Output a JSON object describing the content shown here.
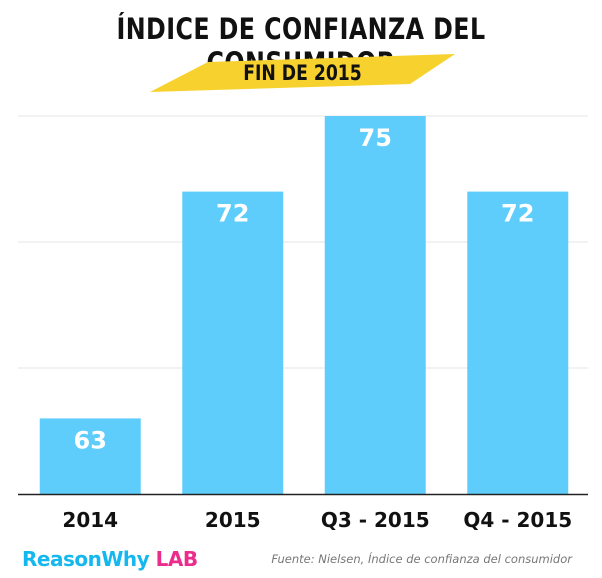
{
  "chart_data": {
    "type": "bar",
    "title": "ÍNDICE DE CONFIANZA DEL CONSUMIDOR",
    "subtitle": "FIN DE 2015",
    "categories": [
      "2014",
      "2015",
      "Q3 - 2015",
      "Q4 - 2015"
    ],
    "values": [
      63,
      72,
      75,
      72
    ],
    "data_labels": [
      "63",
      "72",
      "75",
      "72"
    ],
    "ylim": [
      60,
      75
    ],
    "grid": true,
    "bar_color": "#5ecdfb",
    "highlight_color": "#f7d12e"
  },
  "footer": {
    "logo_part1": "ReasonWhy",
    "logo_part2": "LAB",
    "source": "Fuente: Nielsen, Índice de confianza del consumidor"
  },
  "colors": {
    "brand_blue": "#14b8ee",
    "brand_pink": "#ec2c8c"
  }
}
